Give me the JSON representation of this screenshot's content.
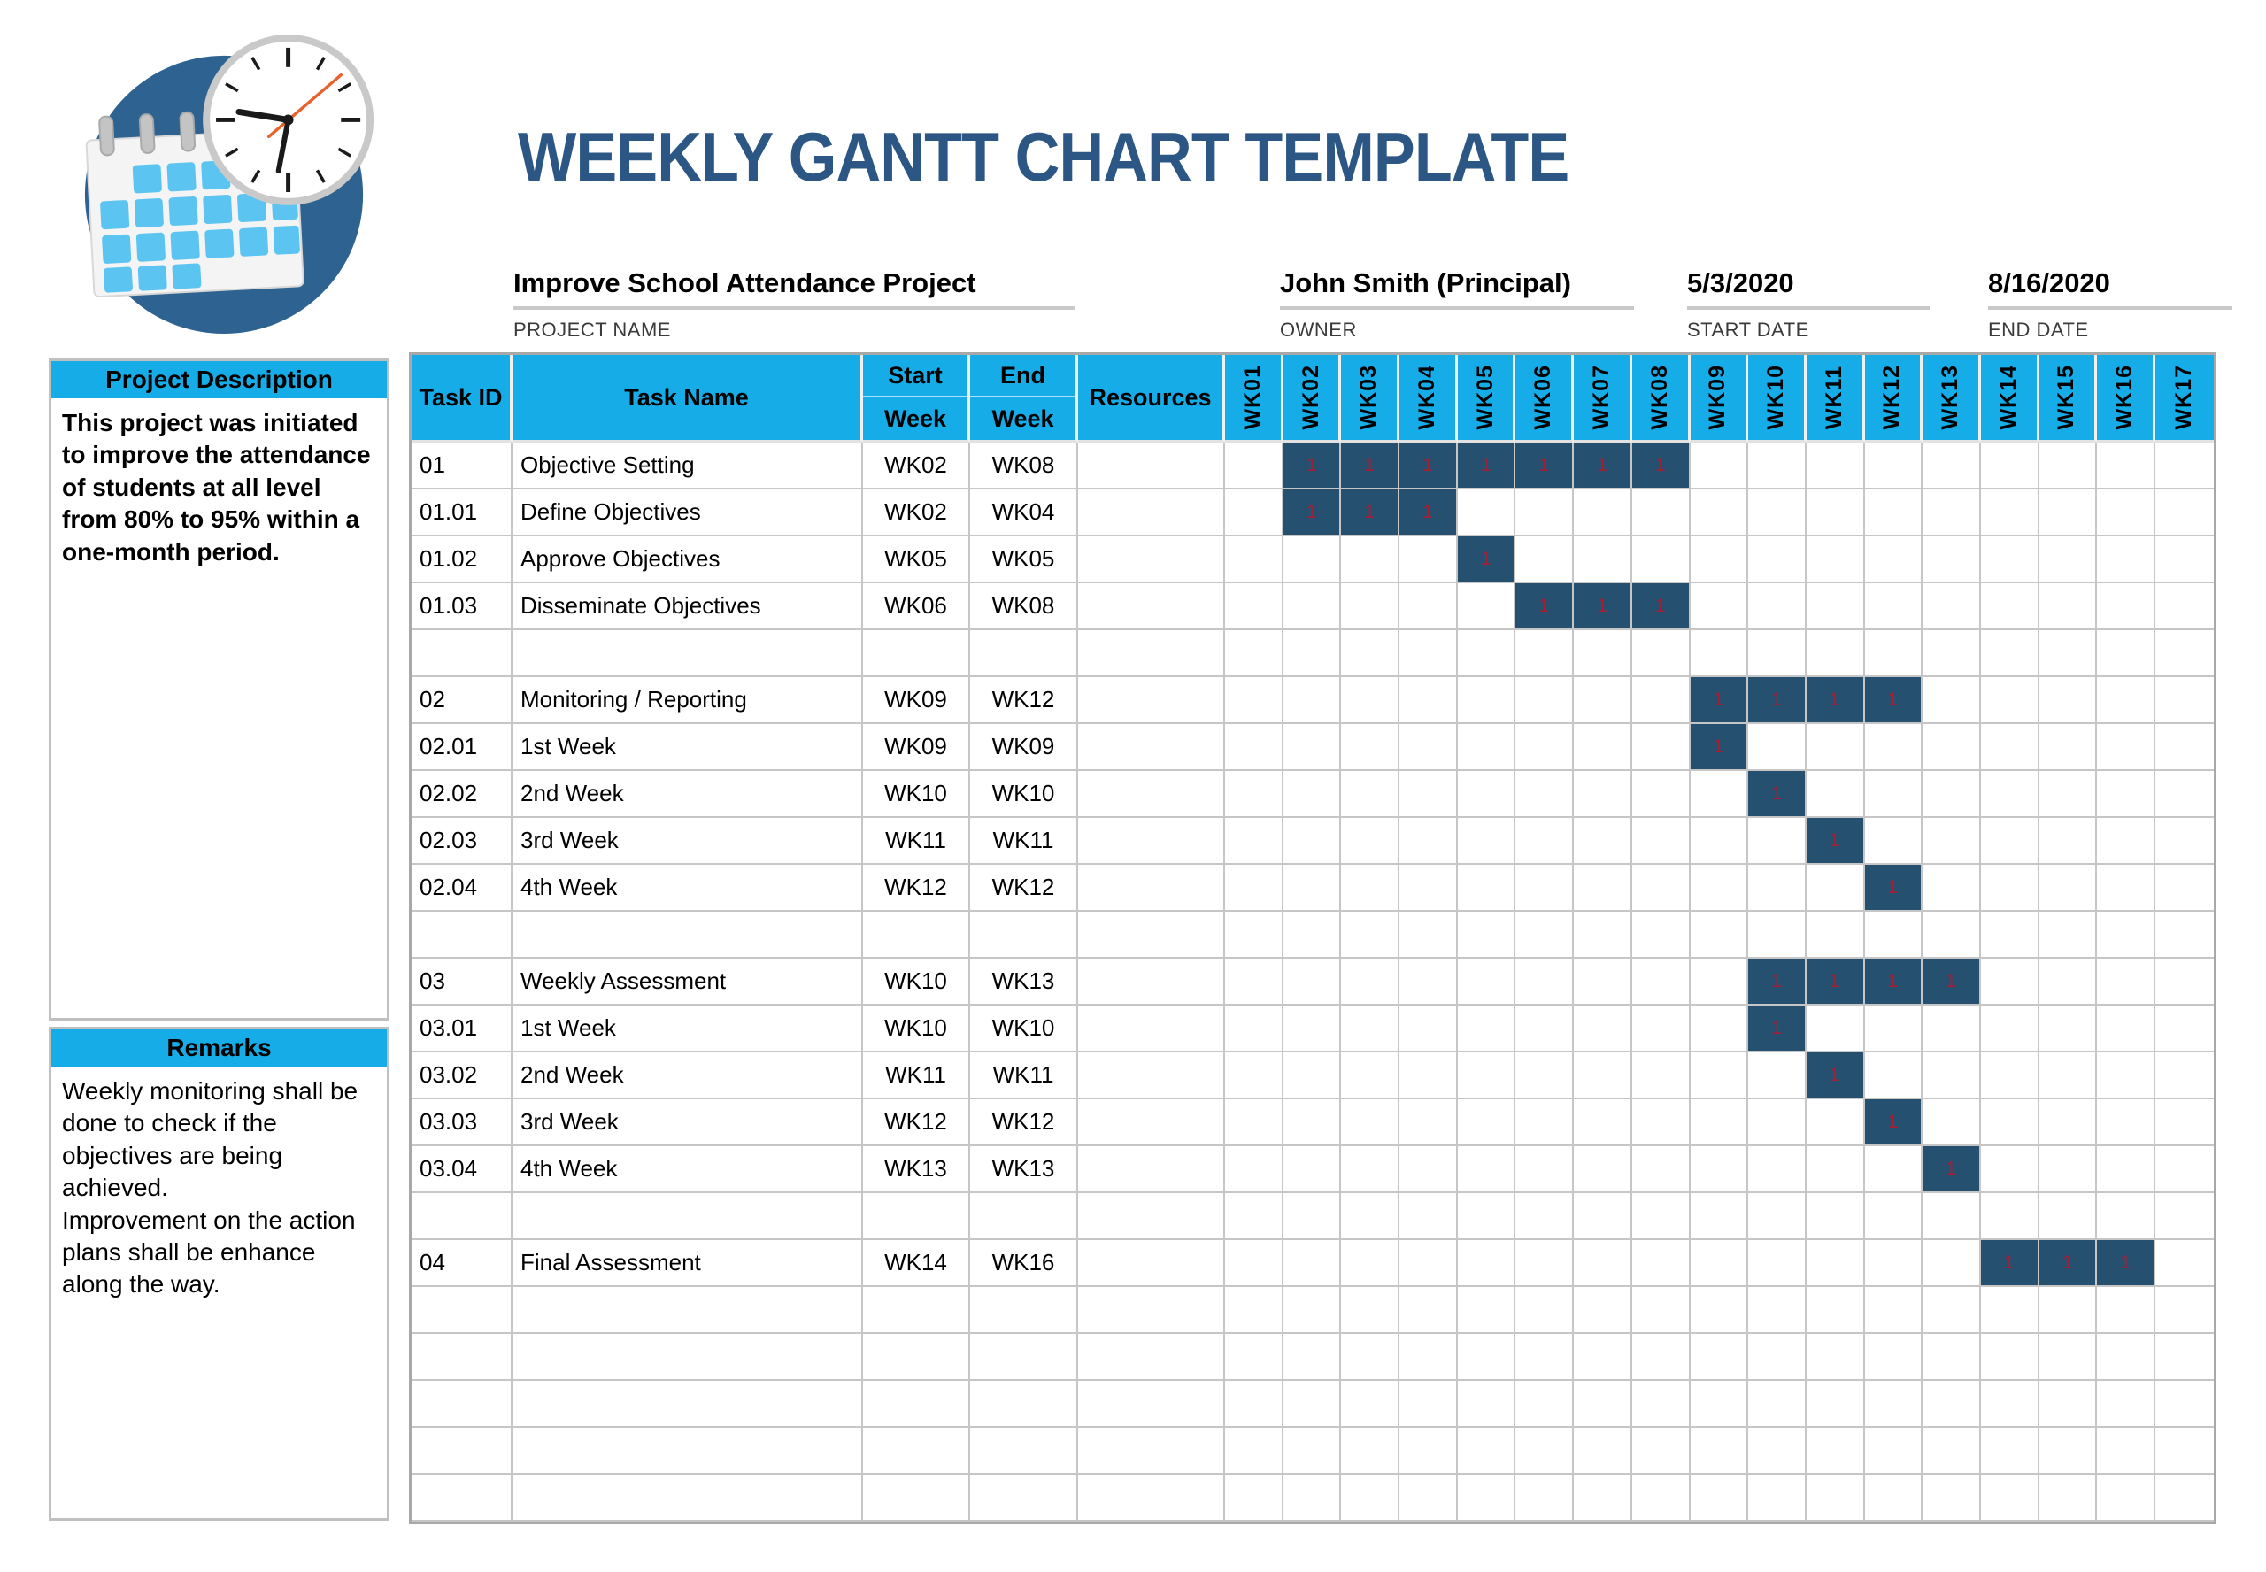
{
  "title": "WEEKLY GANTT CHART TEMPLATE",
  "logo": {
    "icons": [
      "calendar-icon",
      "clock-icon"
    ]
  },
  "project_info": {
    "project_name": {
      "value": "Improve School Attendance Project",
      "label": "PROJECT NAME"
    },
    "owner": {
      "value": "John Smith (Principal)",
      "label": "OWNER"
    },
    "start_date": {
      "value": "5/3/2020",
      "label": "START DATE"
    },
    "end_date": {
      "value": "8/16/2020",
      "label": "END DATE"
    }
  },
  "sidebar": {
    "project_description": {
      "header": "Project Description",
      "body": "This project was initiated to improve the attendance of students at all level from 80% to 95% within a one-month period."
    },
    "remarks": {
      "header": "Remarks",
      "body": "Weekly monitoring shall be done to check if the objectives are being achieved.\nImprovement on the action plans shall be enhance along the way."
    }
  },
  "table": {
    "columns": {
      "task_id": "Task ID",
      "task_name": "Task Name",
      "start_week_top": "Start",
      "start_week_bottom": "Week",
      "end_week_top": "End",
      "end_week_bottom": "Week",
      "resources": "Resources"
    },
    "week_columns": [
      "WK01",
      "WK02",
      "WK03",
      "WK04",
      "WK05",
      "WK06",
      "WK07",
      "WK08",
      "WK09",
      "WK10",
      "WK11",
      "WK12",
      "WK13",
      "WK14",
      "WK15",
      "WK16",
      "WK17"
    ],
    "bar_cell_text": "1",
    "rows": [
      {
        "task_id": "01",
        "task_name": "Objective Setting",
        "start_week": "WK02",
        "end_week": "WK08",
        "resources": "",
        "bar_start": 2,
        "bar_end": 8
      },
      {
        "task_id": "01.01",
        "task_name": "Define Objectives",
        "start_week": "WK02",
        "end_week": "WK04",
        "resources": "",
        "bar_start": 2,
        "bar_end": 4
      },
      {
        "task_id": "01.02",
        "task_name": "Approve Objectives",
        "start_week": "WK05",
        "end_week": "WK05",
        "resources": "",
        "bar_start": 5,
        "bar_end": 5
      },
      {
        "task_id": "01.03",
        "task_name": "Disseminate Objectives",
        "start_week": "WK06",
        "end_week": "WK08",
        "resources": "",
        "bar_start": 6,
        "bar_end": 8
      },
      {
        "task_id": "",
        "task_name": "",
        "start_week": "",
        "end_week": "",
        "resources": "",
        "bar_start": 0,
        "bar_end": 0
      },
      {
        "task_id": "02",
        "task_name": "Monitoring / Reporting",
        "start_week": "WK09",
        "end_week": "WK12",
        "resources": "",
        "bar_start": 9,
        "bar_end": 12
      },
      {
        "task_id": "02.01",
        "task_name": "1st Week",
        "start_week": "WK09",
        "end_week": "WK09",
        "resources": "",
        "bar_start": 9,
        "bar_end": 9
      },
      {
        "task_id": "02.02",
        "task_name": "2nd Week",
        "start_week": "WK10",
        "end_week": "WK10",
        "resources": "",
        "bar_start": 10,
        "bar_end": 10
      },
      {
        "task_id": "02.03",
        "task_name": "3rd Week",
        "start_week": "WK11",
        "end_week": "WK11",
        "resources": "",
        "bar_start": 11,
        "bar_end": 11
      },
      {
        "task_id": "02.04",
        "task_name": "4th Week",
        "start_week": "WK12",
        "end_week": "WK12",
        "resources": "",
        "bar_start": 12,
        "bar_end": 12
      },
      {
        "task_id": "",
        "task_name": "",
        "start_week": "",
        "end_week": "",
        "resources": "",
        "bar_start": 0,
        "bar_end": 0
      },
      {
        "task_id": "03",
        "task_name": "Weekly Assessment",
        "start_week": "WK10",
        "end_week": "WK13",
        "resources": "",
        "bar_start": 10,
        "bar_end": 13
      },
      {
        "task_id": "03.01",
        "task_name": "1st Week",
        "start_week": "WK10",
        "end_week": "WK10",
        "resources": "",
        "bar_start": 10,
        "bar_end": 10
      },
      {
        "task_id": "03.02",
        "task_name": "2nd Week",
        "start_week": "WK11",
        "end_week": "WK11",
        "resources": "",
        "bar_start": 11,
        "bar_end": 11
      },
      {
        "task_id": "03.03",
        "task_name": "3rd Week",
        "start_week": "WK12",
        "end_week": "WK12",
        "resources": "",
        "bar_start": 12,
        "bar_end": 12
      },
      {
        "task_id": "03.04",
        "task_name": "4th Week",
        "start_week": "WK13",
        "end_week": "WK13",
        "resources": "",
        "bar_start": 13,
        "bar_end": 13
      },
      {
        "task_id": "",
        "task_name": "",
        "start_week": "",
        "end_week": "",
        "resources": "",
        "bar_start": 0,
        "bar_end": 0
      },
      {
        "task_id": "04",
        "task_name": "Final Assessment",
        "start_week": "WK14",
        "end_week": "WK16",
        "resources": "",
        "bar_start": 14,
        "bar_end": 16
      },
      {
        "task_id": "",
        "task_name": "",
        "start_week": "",
        "end_week": "",
        "resources": "",
        "bar_start": 0,
        "bar_end": 0
      },
      {
        "task_id": "",
        "task_name": "",
        "start_week": "",
        "end_week": "",
        "resources": "",
        "bar_start": 0,
        "bar_end": 0
      },
      {
        "task_id": "",
        "task_name": "",
        "start_week": "",
        "end_week": "",
        "resources": "",
        "bar_start": 0,
        "bar_end": 0
      },
      {
        "task_id": "",
        "task_name": "",
        "start_week": "",
        "end_week": "",
        "resources": "",
        "bar_start": 0,
        "bar_end": 0
      },
      {
        "task_id": "",
        "task_name": "",
        "start_week": "",
        "end_week": "",
        "resources": "",
        "bar_start": 0,
        "bar_end": 0
      }
    ]
  },
  "colors": {
    "header_cyan": "#16ACE8",
    "bar_fill": "#25506F",
    "bar_text_red": "#A61F35",
    "title_blue": "#2C5684",
    "grid_line": "#C6C6C6",
    "outer_border": "#A8A8A8",
    "logo_circle_blue": "#2E6391",
    "logo_square_blue": "#5BC4F1",
    "clock_second_hand_orange": "#E8632C"
  }
}
